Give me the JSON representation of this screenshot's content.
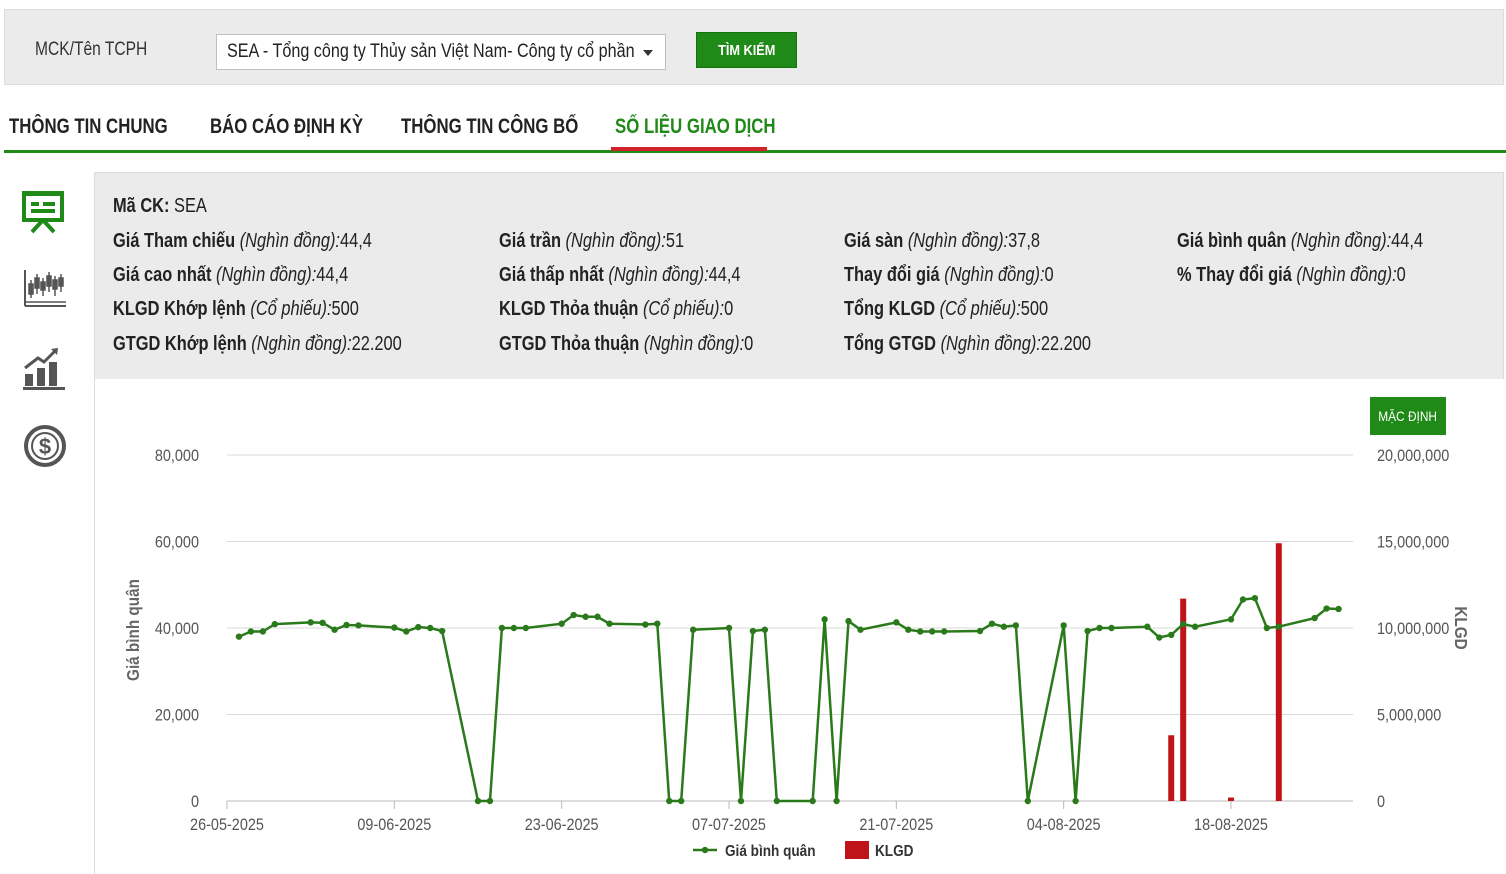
{
  "search": {
    "label": "MCK/Tên TCPH",
    "selected_company": "SEA - Tổng công ty Thủy sản Việt Nam- Công ty cổ phần",
    "button_label": "TÌM KIẾM"
  },
  "tabs": [
    {
      "label": "THÔNG TIN CHUNG",
      "active": false
    },
    {
      "label": "BÁO CÁO ĐỊNH KỲ",
      "active": false
    },
    {
      "label": "THÔNG TIN CÔNG BỐ",
      "active": false
    },
    {
      "label": "SỐ LIỆU GIAO DỊCH",
      "active": true
    }
  ],
  "side_icons": [
    "presentation-icon",
    "candlestick-chart-icon",
    "growth-chart-icon",
    "dollar-coin-icon"
  ],
  "info": {
    "ticker_label": "Mã CK:",
    "ticker_value": "SEA",
    "rows": [
      [
        {
          "label": "Giá Tham chiếu",
          "unit": "(Nghìn đồng):",
          "value": "44,4"
        },
        {
          "label": "Giá trần",
          "unit": "(Nghìn đồng):",
          "value": "51"
        },
        {
          "label": "Giá sàn",
          "unit": "(Nghìn đồng):",
          "value": "37,8"
        },
        {
          "label": "Giá bình quân",
          "unit": "(Nghìn đồng):",
          "value": "44,4"
        }
      ],
      [
        {
          "label": "Giá cao nhất",
          "unit": "(Nghìn đồng):",
          "value": "44,4"
        },
        {
          "label": "Giá thấp nhất",
          "unit": "(Nghìn đồng):",
          "value": "44,4"
        },
        {
          "label": "Thay đổi giá",
          "unit": "(Nghìn đồng):",
          "value": "0"
        },
        {
          "label": "% Thay đổi giá",
          "unit": "(Nghìn đồng):",
          "value": "0"
        }
      ],
      [
        {
          "label": "KLGD Khớp lệnh",
          "unit": "(Cổ phiếu):",
          "value": "500"
        },
        {
          "label": "KLGD Thỏa thuận",
          "unit": "(Cổ phiếu):",
          "value": "0"
        },
        {
          "label": "Tổng KLGD",
          "unit": "(Cổ phiếu):",
          "value": "500"
        }
      ],
      [
        {
          "label": "GTGD Khớp lệnh",
          "unit": "(Nghìn đồng):",
          "value": "22.200"
        },
        {
          "label": "GTGD Thỏa thuận",
          "unit": "(Nghìn đồng):",
          "value": "0"
        },
        {
          "label": "Tổng GTGD",
          "unit": "(Nghìn đồng):",
          "value": "22.200"
        }
      ]
    ]
  },
  "default_button_label": "MẶC ĐỊNH",
  "colors": {
    "brand_green": "#1f8a17",
    "line_green": "#2a7a1c",
    "bar_red": "#c0141b",
    "tab_underline_red": "#d3232a"
  },
  "chart_data": {
    "type": "line",
    "y_left_label": "Giá bình quân",
    "y_right_label": "KLGD",
    "y_left_ticks": [
      "0",
      "20,000",
      "40,000",
      "60,000",
      "80,000"
    ],
    "y_right_ticks": [
      "0",
      "5,000,000",
      "10,000,000",
      "15,000,000",
      "20,000,000"
    ],
    "y_left_range": [
      0,
      80000
    ],
    "y_right_range": [
      0,
      20000000
    ],
    "x_ticks": [
      "26-05-2025",
      "09-06-2025",
      "23-06-2025",
      "07-07-2025",
      "21-07-2025",
      "04-08-2025",
      "18-08-2025"
    ],
    "x_range": [
      "2025-05-26",
      "2025-08-28"
    ],
    "grid": true,
    "legend": {
      "position": "bottom-center",
      "entries": [
        "Giá bình quân",
        "KLGD"
      ]
    },
    "series": [
      {
        "name": "Giá bình quân",
        "kind": "line",
        "points": [
          [
            "2025-05-27",
            38000
          ],
          [
            "2025-05-28",
            39200
          ],
          [
            "2025-05-29",
            39200
          ],
          [
            "2025-05-30",
            40900
          ],
          [
            "2025-06-02",
            41300
          ],
          [
            "2025-06-03",
            41200
          ],
          [
            "2025-06-04",
            39600
          ],
          [
            "2025-06-05",
            40700
          ],
          [
            "2025-06-06",
            40600
          ],
          [
            "2025-06-09",
            40100
          ],
          [
            "2025-06-10",
            39200
          ],
          [
            "2025-06-11",
            40200
          ],
          [
            "2025-06-12",
            40000
          ],
          [
            "2025-06-13",
            39300
          ],
          [
            "2025-06-16",
            0
          ],
          [
            "2025-06-17",
            0
          ],
          [
            "2025-06-18",
            40000
          ],
          [
            "2025-06-19",
            40000
          ],
          [
            "2025-06-20",
            40000
          ],
          [
            "2025-06-23",
            41000
          ],
          [
            "2025-06-24",
            43000
          ],
          [
            "2025-06-25",
            42600
          ],
          [
            "2025-06-26",
            42600
          ],
          [
            "2025-06-27",
            41000
          ],
          [
            "2025-06-30",
            40800
          ],
          [
            "2025-07-01",
            41000
          ],
          [
            "2025-07-02",
            0
          ],
          [
            "2025-07-03",
            0
          ],
          [
            "2025-07-04",
            39600
          ],
          [
            "2025-07-07",
            40000
          ],
          [
            "2025-07-08",
            0
          ],
          [
            "2025-07-09",
            39300
          ],
          [
            "2025-07-10",
            39600
          ],
          [
            "2025-07-11",
            0
          ],
          [
            "2025-07-14",
            0
          ],
          [
            "2025-07-15",
            42000
          ],
          [
            "2025-07-16",
            0
          ],
          [
            "2025-07-17",
            41600
          ],
          [
            "2025-07-18",
            39600
          ],
          [
            "2025-07-21",
            41300
          ],
          [
            "2025-07-22",
            39600
          ],
          [
            "2025-07-23",
            39200
          ],
          [
            "2025-07-24",
            39200
          ],
          [
            "2025-07-25",
            39200
          ],
          [
            "2025-07-28",
            39300
          ],
          [
            "2025-07-29",
            41000
          ],
          [
            "2025-07-30",
            40300
          ],
          [
            "2025-07-31",
            40600
          ],
          [
            "2025-08-01",
            0
          ],
          [
            "2025-08-04",
            40600
          ],
          [
            "2025-08-05",
            0
          ],
          [
            "2025-08-06",
            39300
          ],
          [
            "2025-08-07",
            40000
          ],
          [
            "2025-08-08",
            40000
          ],
          [
            "2025-08-11",
            40300
          ],
          [
            "2025-08-12",
            37800
          ],
          [
            "2025-08-13",
            38400
          ],
          [
            "2025-08-14",
            40900
          ],
          [
            "2025-08-15",
            40300
          ],
          [
            "2025-08-18",
            42000
          ],
          [
            "2025-08-19",
            46600
          ],
          [
            "2025-08-20",
            46900
          ],
          [
            "2025-08-21",
            40000
          ],
          [
            "2025-08-22",
            40300
          ],
          [
            "2025-08-25",
            42300
          ],
          [
            "2025-08-26",
            44500
          ],
          [
            "2025-08-27",
            44400
          ]
        ]
      },
      {
        "name": "KLGD",
        "kind": "bar",
        "axis": "right",
        "points": [
          [
            "2025-08-13",
            3800000
          ],
          [
            "2025-08-14",
            11700000
          ],
          [
            "2025-08-18",
            200000
          ],
          [
            "2025-08-22",
            14900000
          ]
        ]
      }
    ]
  }
}
